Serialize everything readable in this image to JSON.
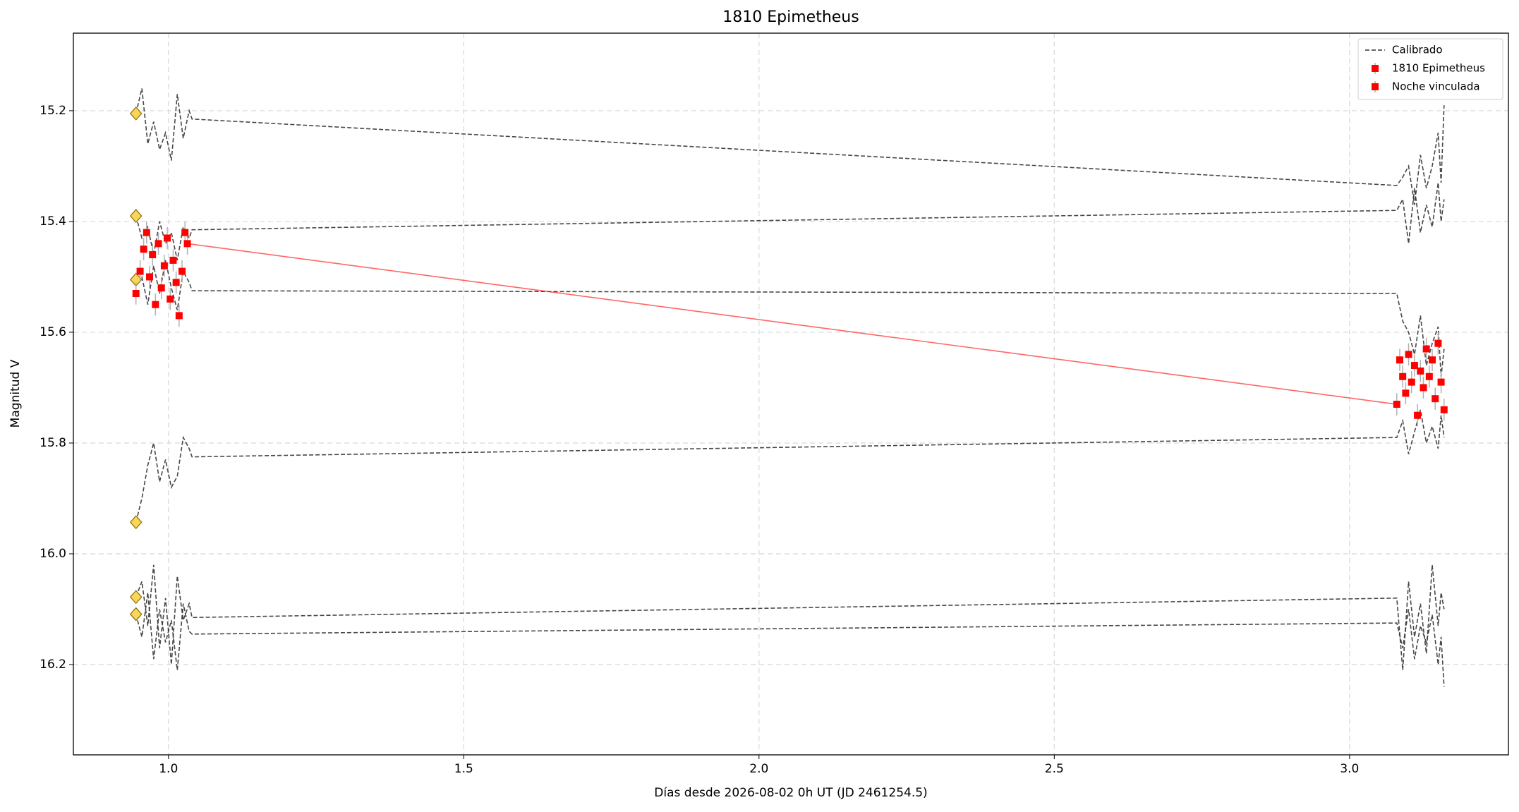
{
  "chart_data": {
    "type": "lightcurve",
    "title": "1810 Epimetheus",
    "xlabel": "Días desde 2026-08-02 0h UT (JD 2461254.5)",
    "ylabel": "Magnitud V",
    "xlim": [
      0.839,
      3.269
    ],
    "ylim": [
      16.363,
      15.06
    ],
    "xticks": [
      {
        "value": 1,
        "label": "1.0"
      },
      1.5,
      {
        "value": 2,
        "label": "2.0"
      },
      2.5,
      {
        "value": 3,
        "label": "3.0"
      }
    ],
    "yticks": [
      15.2,
      15.4,
      15.6,
      15.8,
      {
        "value": 16,
        "label": "16.0"
      },
      16.2
    ],
    "grid": true,
    "legend": "upper right",
    "series": [
      {
        "name": "Calibrado",
        "color": "#333333",
        "start_marker_color": "#f7d65a",
        "x": [
          0.945,
          0.955,
          0.965,
          0.975,
          0.985,
          0.995,
          1.005,
          1.015,
          1.025,
          1.035,
          1.04,
          3.08,
          3.09,
          3.1,
          3.11,
          3.12,
          3.13,
          3.14,
          3.15,
          3.155,
          3.16
        ],
        "curves": [
          [
            15.205,
            15.16,
            15.26,
            15.22,
            15.27,
            15.24,
            15.29,
            15.17,
            15.25,
            15.2,
            15.215,
            15.335,
            15.32,
            15.3,
            15.37,
            15.28,
            15.34,
            15.3,
            15.24,
            15.33,
            15.19
          ],
          [
            15.39,
            15.43,
            15.41,
            15.46,
            15.4,
            15.44,
            15.42,
            15.47,
            15.41,
            15.43,
            15.415,
            15.38,
            15.36,
            15.44,
            15.34,
            15.42,
            15.37,
            15.41,
            15.33,
            15.4,
            15.36
          ],
          [
            15.505,
            15.5,
            15.55,
            15.48,
            15.53,
            15.47,
            15.52,
            15.56,
            15.49,
            15.51,
            15.525,
            15.53,
            15.58,
            15.6,
            15.64,
            15.57,
            15.66,
            15.62,
            15.59,
            15.68,
            15.63
          ],
          [
            15.943,
            15.9,
            15.84,
            15.8,
            15.87,
            15.83,
            15.88,
            15.86,
            15.79,
            15.81,
            15.825,
            15.79,
            15.76,
            15.82,
            15.78,
            15.74,
            15.8,
            15.77,
            15.81,
            15.75,
            15.79
          ],
          [
            16.078,
            16.05,
            16.13,
            16.02,
            16.17,
            16.08,
            16.2,
            16.04,
            16.12,
            16.09,
            16.115,
            16.08,
            16.21,
            16.05,
            16.15,
            16.09,
            16.18,
            16.02,
            16.13,
            16.07,
            16.1
          ],
          [
            16.109,
            16.15,
            16.07,
            16.19,
            16.1,
            16.16,
            16.12,
            16.21,
            16.09,
            16.14,
            16.145,
            16.125,
            16.17,
            16.1,
            16.19,
            16.13,
            16.16,
            16.11,
            16.2,
            16.15,
            16.24
          ]
        ]
      },
      {
        "name": "1810 Epimetheus",
        "color": "#ff0000",
        "error_color": "#b0b0b0",
        "x": [
          0.945,
          0.952,
          0.958,
          0.963,
          0.968,
          0.973,
          0.978,
          0.983,
          0.988,
          0.993,
          0.998,
          1.003,
          1.008,
          1.013,
          1.018,
          1.023,
          1.028,
          1.032
        ],
        "values": [
          15.53,
          15.49,
          15.45,
          15.42,
          15.5,
          15.46,
          15.55,
          15.44,
          15.52,
          15.48,
          15.43,
          15.54,
          15.47,
          15.51,
          15.57,
          15.49,
          15.42,
          15.44
        ],
        "errors": [
          0.02,
          0.02,
          0.02,
          0.02,
          0.02,
          0.02,
          0.02,
          0.02,
          0.02,
          0.02,
          0.02,
          0.02,
          0.02,
          0.02,
          0.02,
          0.02,
          0.02,
          0.02
        ]
      },
      {
        "name": "Noche vinculada",
        "color": "#ff0000",
        "error_color": "#b0b0b0",
        "x": [
          3.08,
          3.085,
          3.09,
          3.095,
          3.1,
          3.105,
          3.11,
          3.115,
          3.12,
          3.125,
          3.13,
          3.135,
          3.14,
          3.145,
          3.15,
          3.155,
          3.16
        ],
        "values": [
          15.73,
          15.65,
          15.68,
          15.71,
          15.64,
          15.69,
          15.66,
          15.75,
          15.67,
          15.7,
          15.63,
          15.68,
          15.65,
          15.72,
          15.62,
          15.69,
          15.74
        ],
        "errors": [
          0.02,
          0.02,
          0.02,
          0.02,
          0.02,
          0.02,
          0.02,
          0.02,
          0.02,
          0.02,
          0.02,
          0.02,
          0.02,
          0.02,
          0.02,
          0.02,
          0.02
        ]
      }
    ]
  }
}
